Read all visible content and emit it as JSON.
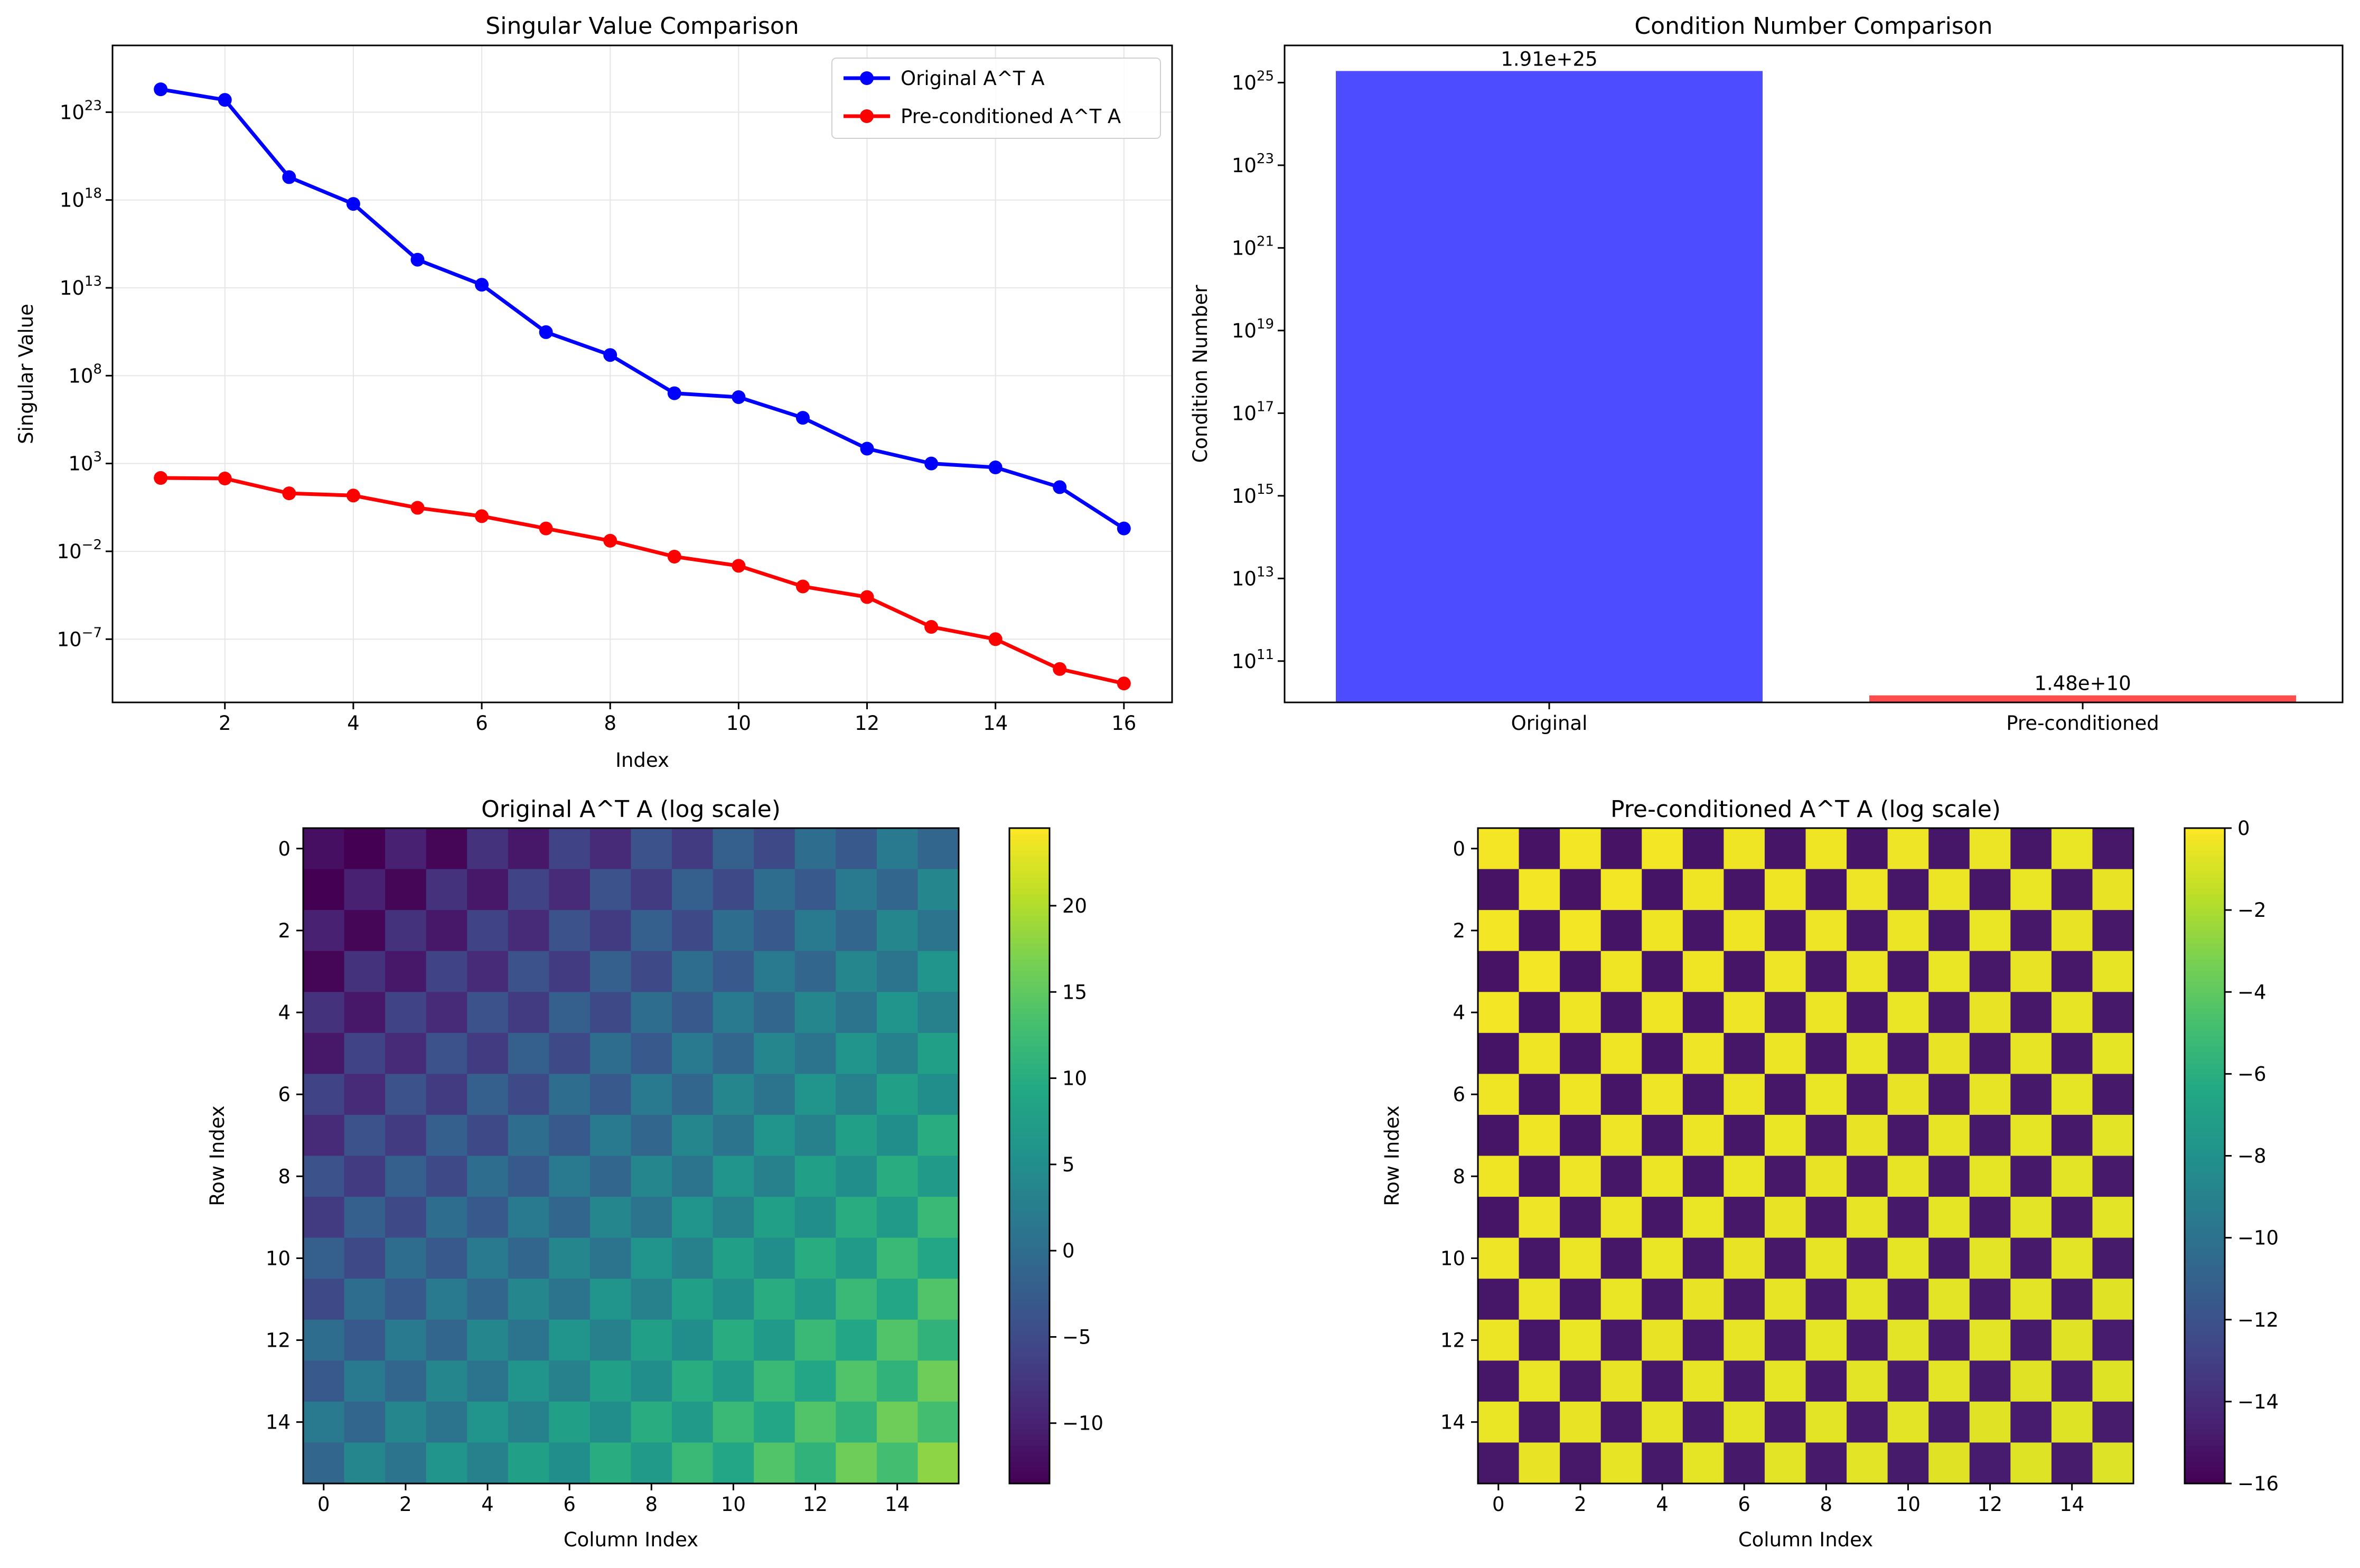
{
  "chart_data": [
    {
      "type": "line",
      "title": "Singular Value Comparison",
      "xlabel": "Index",
      "ylabel": "Singular Value",
      "yscale": "log",
      "grid": true,
      "legend": "top-right",
      "xlim": [
        0.25,
        16.75
      ],
      "ylim_exp": [
        -10.6,
        26.8
      ],
      "xticks": [
        2,
        4,
        6,
        8,
        10,
        12,
        14,
        16
      ],
      "xtick_labels": [
        "2",
        "4",
        "6",
        "8",
        "10",
        "12",
        "14",
        "16"
      ],
      "yticks_exp": [
        -7,
        -2,
        3,
        8,
        13,
        18,
        23
      ],
      "ytick_base": "10",
      "ytick_exponents": [
        "−7",
        "−2",
        "3",
        "8",
        "13",
        "18",
        "23"
      ],
      "x": [
        1,
        2,
        3,
        4,
        5,
        6,
        7,
        8,
        9,
        10,
        11,
        12,
        13,
        14,
        15,
        16
      ],
      "series": [
        {
          "name": "Original A^T A",
          "color": "#0000ff",
          "values": [
            "2.0e24",
            "5.0e23",
            "2.0e19",
            "6.0e17",
            "4.0e14",
            "1.5e13",
            "3.0e10",
            "1.5e9",
            "1.0e7",
            "6.0e6",
            "4.0e5",
            "7.0e3",
            "1.0e3",
            "6.0e2",
            "4.5e1",
            "2.0e-1"
          ]
        },
        {
          "name": "Pre-conditioned A^T A",
          "color": "#ff0000",
          "values": [
            "1.5e2",
            "1.4e2",
            "2.0e1",
            "1.5e1",
            "3.0e0",
            "1.0e0",
            "2.0e-1",
            "4.0e-2",
            "5.0e-3",
            "1.5e-3",
            "1.0e-4",
            "2.5e-5",
            "5.0e-7",
            "1.0e-7",
            "2.0e-9",
            "3.0e-10"
          ]
        }
      ]
    },
    {
      "type": "bar",
      "title": "Condition Number Comparison",
      "ylabel": "Condition Number",
      "yscale": "log",
      "ylim_exp": [
        10.0,
        25.9
      ],
      "yticks_exp": [
        11,
        13,
        15,
        17,
        19,
        21,
        23,
        25
      ],
      "ytick_base": "10",
      "ytick_exponents": [
        "11",
        "13",
        "15",
        "17",
        "19",
        "21",
        "23",
        "25"
      ],
      "categories": [
        "Original",
        "Pre-conditioned"
      ],
      "values": [
        1.91e+25,
        14800000000.0
      ],
      "value_labels": [
        "1.91e+25",
        "1.48e+10"
      ],
      "colors": [
        "#4d4dff",
        "#ff4d4d"
      ]
    },
    {
      "type": "heatmap",
      "title": "Original A^T A (log scale)",
      "xlabel": "Column Index",
      "ylabel": "Row Index",
      "colormap": "viridis",
      "size": 16,
      "formula": "log10 |A^T A|[i][j] = i + j − 12 when i+j even; i + j − 16 when i+j odd",
      "clim": [
        -13.5,
        24.5
      ],
      "ticks": [
        0,
        2,
        4,
        6,
        8,
        10,
        12,
        14
      ],
      "tick_labels": [
        "0",
        "2",
        "4",
        "6",
        "8",
        "10",
        "12",
        "14"
      ],
      "colorbar_ticks": [
        -10,
        -5,
        0,
        5,
        10,
        15,
        20
      ],
      "colorbar_labels": [
        "−10",
        "−5",
        "0",
        "5",
        "10",
        "15",
        "20"
      ]
    },
    {
      "type": "heatmap",
      "title": "Pre-conditioned A^T A (log scale)",
      "xlabel": "Column Index",
      "ylabel": "Row Index",
      "colormap": "viridis",
      "size": 16,
      "formula": "≈ 0 when i+j even; ≈ −15 when i+j odd",
      "clim": [
        -16,
        0
      ],
      "ticks": [
        0,
        2,
        4,
        6,
        8,
        10,
        12,
        14
      ],
      "tick_labels": [
        "0",
        "2",
        "4",
        "6",
        "8",
        "10",
        "12",
        "14"
      ],
      "colorbar_ticks": [
        -16,
        -14,
        -12,
        -10,
        -8,
        -6,
        -4,
        -2,
        0
      ],
      "colorbar_labels": [
        "−16",
        "−14",
        "−12",
        "−10",
        "−8",
        "−6",
        "−4",
        "−2",
        "0"
      ]
    }
  ]
}
